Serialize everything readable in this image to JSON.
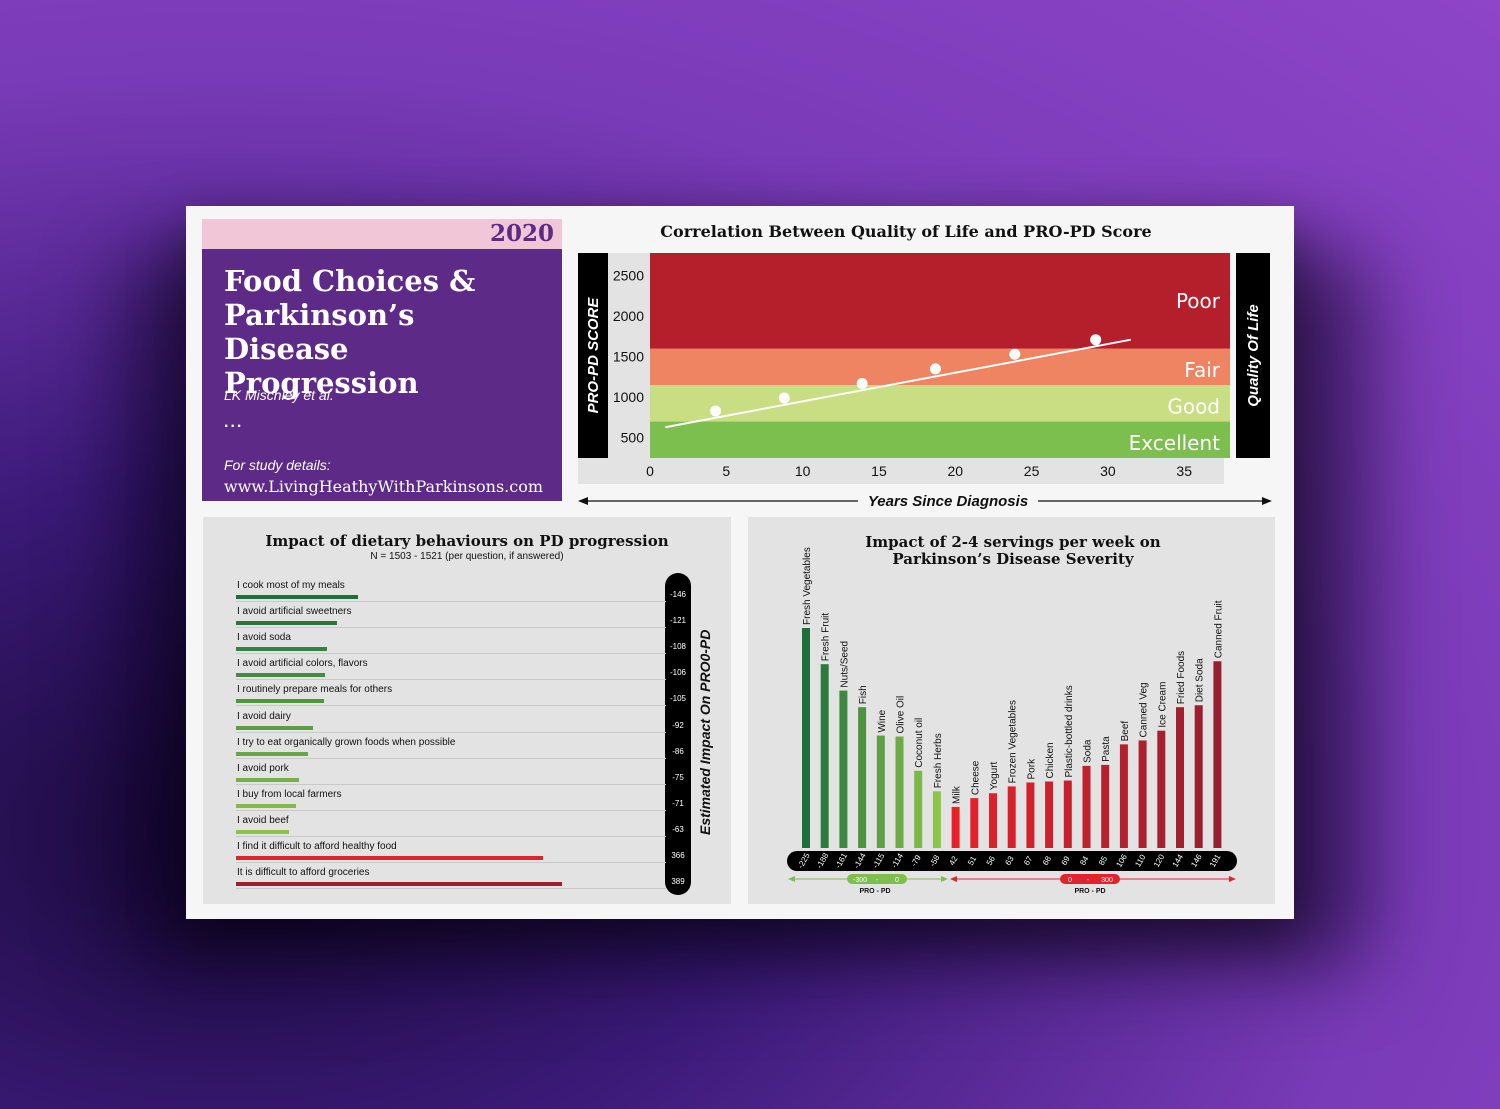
{
  "title_card": {
    "year": "2020",
    "title": "Food Choices & Parkinson’s Disease Progression",
    "authors": "LK Mischley et al.",
    "ellipsis": "...",
    "details_label": "For study details:",
    "website": "www.LivingHeathyWithParkinsons.com"
  },
  "colors": {
    "purple": "#5e2a87",
    "pink": "#f1c6d6",
    "poor": "#b51e2b",
    "fair": "#ee8462",
    "good": "#c9dd82",
    "excellent": "#7dbf4f",
    "green_dark": "#1e6e3a",
    "green_light": "#7dbf4f",
    "red": "#e0242c",
    "red_dark": "#9b1f2e"
  },
  "chart_data": [
    {
      "type": "line",
      "title": "Correlation Between Quality of Life and PRO-PD Score",
      "xlabel": "Years Since Diagnosis",
      "ylabel": "PRO-PD SCORE",
      "right_label": "Quality Of Life",
      "x_ticks": [
        0,
        5,
        10,
        15,
        20,
        25,
        30,
        35
      ],
      "y_ticks": [
        500,
        1000,
        1500,
        2000,
        2500
      ],
      "xlim": [
        0,
        38
      ],
      "ylim": [
        250,
        2780
      ],
      "bands": [
        {
          "label": "Excellent",
          "from": 250,
          "to": 700,
          "color": "#7dbf4f"
        },
        {
          "label": "Good",
          "from": 700,
          "to": 1150,
          "color": "#c9dd82"
        },
        {
          "label": "Fair",
          "from": 1150,
          "to": 1600,
          "color": "#ee8462"
        },
        {
          "label": "Poor",
          "from": 1600,
          "to": 2780,
          "color": "#b51e2b"
        }
      ],
      "trend_line": {
        "x": [
          1,
          31.5
        ],
        "y": [
          630,
          1710
        ]
      },
      "points": [
        {
          "x": 4.3,
          "y": 830
        },
        {
          "x": 8.8,
          "y": 990
        },
        {
          "x": 13.9,
          "y": 1170
        },
        {
          "x": 18.7,
          "y": 1350
        },
        {
          "x": 23.9,
          "y": 1530
        },
        {
          "x": 29.2,
          "y": 1710
        }
      ]
    },
    {
      "type": "bar",
      "orientation": "horizontal",
      "title": "Impact of dietary behaviours on PD progression",
      "subtitle": "N = 1503 - 1521 (per question, if answered)",
      "axis_label": "Estimated Impact On PRO0-PD",
      "categories": [
        "I cook most of my meals",
        "I avoid artificial sweetners",
        "I avoid soda",
        "I avoid artificial colors, flavors",
        "I routinely prepare meals for others",
        "I avoid dairy",
        "I try to eat organically grown foods when possible",
        "I avoid pork",
        "I buy from local farmers",
        " I avoid beef",
        "I find it difficult to afford healthy food",
        "It is difficult to afford groceries"
      ],
      "values": [
        -146,
        -121,
        -108,
        -106,
        -105,
        -92,
        -86,
        -75,
        -71,
        -63,
        366,
        389
      ]
    },
    {
      "type": "bar",
      "title": "Impact of 2-4 servings per week on Parkinson’s Disease Severity",
      "categories": [
        "Fresh Vegetables",
        "Fresh Fruit",
        "Nuts/Seed",
        "Fish",
        "Wine",
        "Olive Oil",
        "Coconut oil",
        "Fresh Herbs",
        "Milk",
        "Cheese",
        "Yogurt",
        "Frozen Vegetables",
        "Pork",
        "Chicken",
        "Plastic-bottled drinks",
        "Soda",
        "Pasta",
        "Beef",
        "Canned Veg",
        "Ice Cream",
        "Fried Foods",
        "Diet Soda",
        "Canned Fruit"
      ],
      "values": [
        -225,
        -188,
        -161,
        -144,
        -115,
        -114,
        -79,
        -58,
        42,
        51,
        56,
        63,
        67,
        68,
        69,
        84,
        85,
        106,
        110,
        120,
        144,
        146,
        191
      ],
      "legend_negative": {
        "range_start": "-300",
        "range_sep": "-",
        "range_end": "0",
        "label": "PRO - PD"
      },
      "legend_positive": {
        "range_start": "0",
        "range_sep": "-",
        "range_end": "300",
        "label": "PRO - PD"
      }
    }
  ]
}
